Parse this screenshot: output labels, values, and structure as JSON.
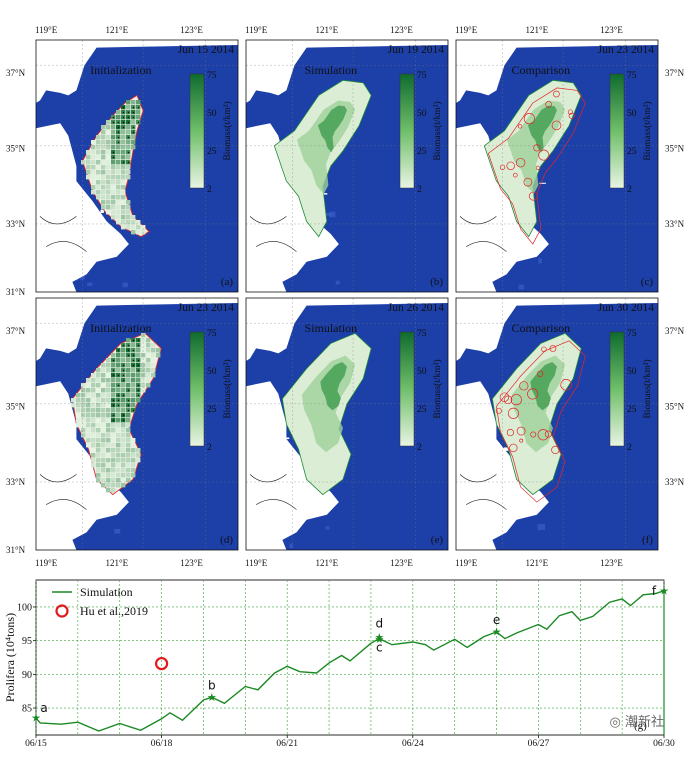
{
  "colors": {
    "sea": "#1c3fa8",
    "sea_mid": "#3a5ec8",
    "land": "#ffffff",
    "algae_low": "#e8f4e3",
    "algae_high": "#0f6b2f",
    "outline_red": "#e3262a",
    "outline_green": "#1f8a3a",
    "series_green": "#1b8a24",
    "grid_green": "#3aa13a",
    "marker_red": "#e11b1b"
  },
  "map": {
    "lon_labels": [
      "119°E",
      "121°E",
      "123°E"
    ],
    "lat_labels": [
      "37°N",
      "35°N",
      "33°N",
      "31°N"
    ],
    "colorbar": {
      "label": "Biomass(t/km²)",
      "ticks": [
        "75",
        "50",
        "25",
        "2"
      ]
    },
    "panels": [
      {
        "title": "Initialization",
        "date": "Jun 15 2014",
        "letter": "(a)",
        "mode": "init",
        "seed": 3
      },
      {
        "title": "Simulation",
        "date": "Jun 19 2014",
        "letter": "(b)",
        "mode": "sim",
        "seed": 7
      },
      {
        "title": "Comparison",
        "date": "Jun 23 2014",
        "letter": "(c)",
        "mode": "comp",
        "seed": 11
      },
      {
        "title": "Initialization",
        "date": "Jun 23 2014",
        "letter": "(d)",
        "mode": "init",
        "seed": 13
      },
      {
        "title": "Simulation",
        "date": "Jun 26 2014",
        "letter": "(e)",
        "mode": "sim",
        "seed": 17
      },
      {
        "title": "Comparison",
        "date": "Jun 30 2014",
        "letter": "(f)",
        "mode": "comp",
        "seed": 19
      }
    ]
  },
  "chart_data": {
    "type": "line",
    "ylabel": "Prolifera (10⁴tons)",
    "xlabel": "",
    "panel_letter": "(g)",
    "x_ticks": [
      "06/15",
      "06/18",
      "06/21",
      "06/24",
      "06/27",
      "06/30"
    ],
    "y_ticks": [
      85,
      90,
      95,
      100
    ],
    "xlim_days": [
      15,
      30
    ],
    "ylim": [
      81,
      104
    ],
    "legend": {
      "placement": "top-left",
      "sim_label": "Simulation",
      "obs_label": "Hu et al.,2019"
    },
    "series": [
      {
        "name": "Simulation",
        "points": [
          [
            15.0,
            83.5
          ],
          [
            15.1,
            82.8
          ],
          [
            15.6,
            82.6
          ],
          [
            16.0,
            82.9
          ],
          [
            16.5,
            81.6
          ],
          [
            17.0,
            82.7
          ],
          [
            17.5,
            81.7
          ],
          [
            18.0,
            83.4
          ],
          [
            18.2,
            84.3
          ],
          [
            18.5,
            83.2
          ],
          [
            19.0,
            86.2
          ],
          [
            19.2,
            86.6
          ],
          [
            19.5,
            85.7
          ],
          [
            20.0,
            88.2
          ],
          [
            20.3,
            87.7
          ],
          [
            20.7,
            90.2
          ],
          [
            21.0,
            91.2
          ],
          [
            21.3,
            90.4
          ],
          [
            21.7,
            90.2
          ],
          [
            22.0,
            91.7
          ],
          [
            22.3,
            92.8
          ],
          [
            22.5,
            92.0
          ],
          [
            23.0,
            94.6
          ],
          [
            23.2,
            95.3
          ],
          [
            23.5,
            94.4
          ],
          [
            24.0,
            94.8
          ],
          [
            24.3,
            94.4
          ],
          [
            24.5,
            93.6
          ],
          [
            25.0,
            95.2
          ],
          [
            25.3,
            94.0
          ],
          [
            25.7,
            95.6
          ],
          [
            26.0,
            96.3
          ],
          [
            26.2,
            95.3
          ],
          [
            26.5,
            96.2
          ],
          [
            27.0,
            97.4
          ],
          [
            27.2,
            96.7
          ],
          [
            27.5,
            98.7
          ],
          [
            27.8,
            99.3
          ],
          [
            28.0,
            98.0
          ],
          [
            28.3,
            98.6
          ],
          [
            28.7,
            100.7
          ],
          [
            29.0,
            101.2
          ],
          [
            29.2,
            100.2
          ],
          [
            29.5,
            101.8
          ],
          [
            29.8,
            102.0
          ],
          [
            30.0,
            102.4
          ]
        ]
      }
    ],
    "markers": [
      {
        "label": "a",
        "day": 15.0,
        "value": 83.5
      },
      {
        "label": "b",
        "day": 19.2,
        "value": 86.6
      },
      {
        "label": "c",
        "day": 23.2,
        "value": 95.2
      },
      {
        "label": "d",
        "day": 23.2,
        "value": 95.5
      },
      {
        "label": "e",
        "day": 26.0,
        "value": 96.3
      },
      {
        "label": "f",
        "day": 30.0,
        "value": 102.4
      }
    ],
    "observations": [
      {
        "name": "Hu et al.,2019",
        "day": 18.0,
        "value": 91.6
      }
    ]
  },
  "watermark": "潮新社"
}
